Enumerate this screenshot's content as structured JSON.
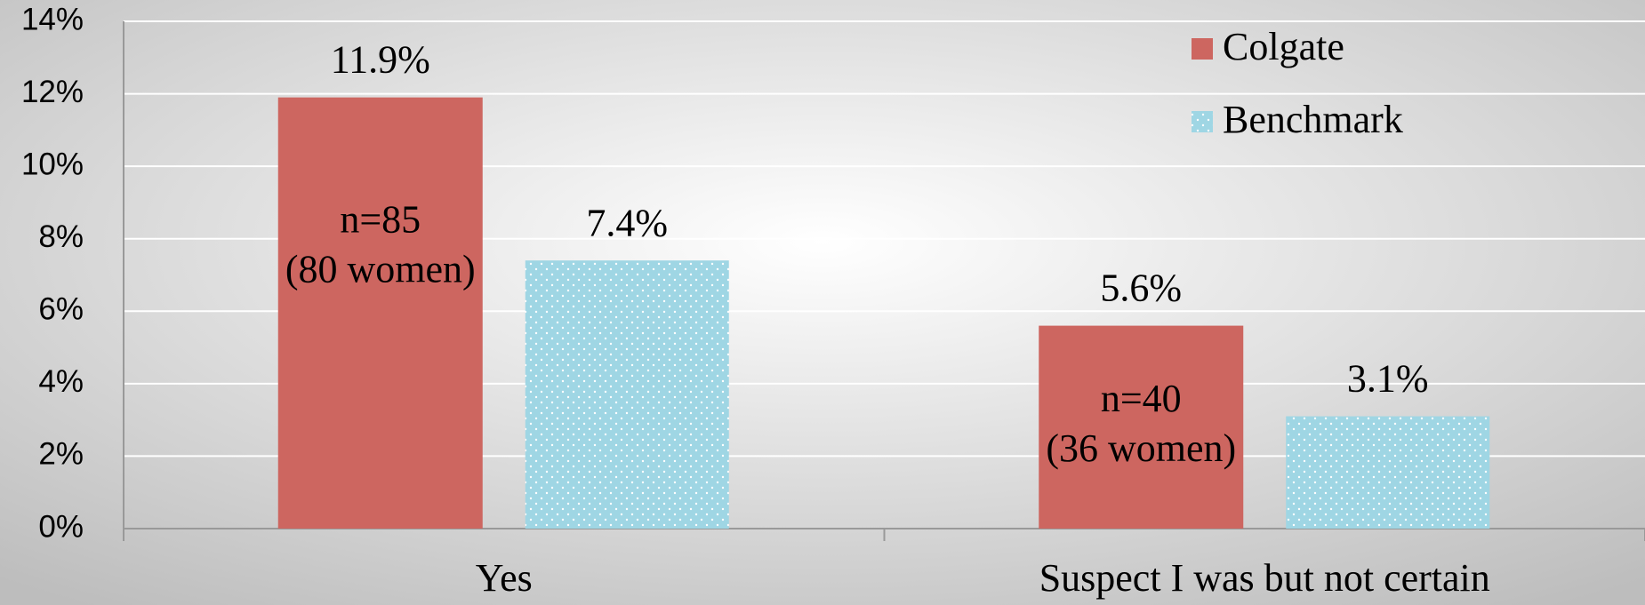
{
  "chart_data": {
    "type": "bar",
    "categories": [
      "Yes",
      "Suspect I was but not certain"
    ],
    "series": [
      {
        "name": "Colgate",
        "color": "#cd6660",
        "values": [
          11.9,
          5.6
        ],
        "value_labels": [
          "11.9%",
          "5.6%"
        ]
      },
      {
        "name": "Benchmark",
        "color": "#9fd6e4",
        "values": [
          7.4,
          3.1
        ],
        "value_labels": [
          "7.4%",
          "3.1%"
        ]
      }
    ],
    "annotations": [
      {
        "lines": [
          "n=85",
          "(80 women)"
        ]
      },
      {
        "lines": [
          "n=40",
          "(36 women)"
        ]
      }
    ],
    "ylim": [
      0,
      14
    ],
    "yticks": [
      {
        "value": 0,
        "label": "0%"
      },
      {
        "value": 2,
        "label": "2%"
      },
      {
        "value": 4,
        "label": "4%"
      },
      {
        "value": 6,
        "label": "6%"
      },
      {
        "value": 8,
        "label": "8%"
      },
      {
        "value": 10,
        "label": "10%"
      },
      {
        "value": 12,
        "label": "12%"
      },
      {
        "value": 14,
        "label": "14%"
      }
    ],
    "grid": true,
    "legend": "top-right"
  }
}
